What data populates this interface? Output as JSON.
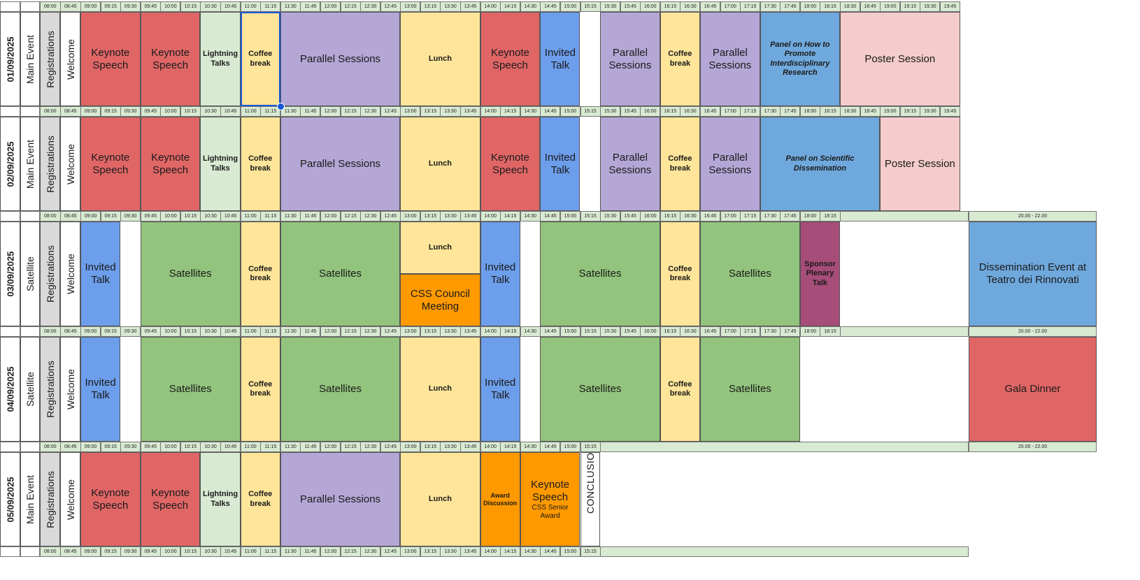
{
  "colors": {
    "keynote": "#e06666",
    "lightning": "#d9ead3",
    "coffee": "#ffe599",
    "parallel": "#b4a7d6",
    "lunch": "#ffe599",
    "invited": "#6d9eeb",
    "panel": "#6fa8dc",
    "poster": "#f4cccc",
    "satellites": "#93c47d",
    "orange": "#ff9900",
    "sponsor": "#a64d79",
    "dissemination": "#6fa8dc",
    "gala": "#e06666",
    "timeline": "#d9ead3",
    "registrations": "#d9d9d9",
    "selection": "#1a56d6"
  },
  "time_slots": [
    "08:00",
    "08:45",
    "09:00",
    "09:15",
    "09:30",
    "09:45",
    "10:00",
    "10:15",
    "10:30",
    "10:45",
    "11:00",
    "11:15",
    "11:30",
    "11:45",
    "12:00",
    "12:15",
    "12:30",
    "12:45",
    "13:00",
    "13:15",
    "13:30",
    "13:45",
    "14:00",
    "14:15",
    "14:30",
    "14:45",
    "15:00",
    "15:15",
    "15:30",
    "15:45",
    "16:00",
    "16:15",
    "16:30",
    "16:45",
    "17:00",
    "17:15",
    "17:30",
    "17:45",
    "18:00",
    "18:15",
    "18:30",
    "18:45",
    "19:00",
    "19:15",
    "19:30",
    "19:45"
  ],
  "evening_label": "20.00 - 22.00",
  "days": [
    {
      "date": "01/09/2025",
      "track": "Main Event",
      "registrations": "Registrations",
      "welcome": "Welcome",
      "sessions": [
        {
          "label": "Keynote Speech",
          "color": "keynote",
          "start": 2,
          "span": 3,
          "style": "big"
        },
        {
          "label": "Keynote Speech",
          "color": "keynote",
          "start": 5,
          "span": 3,
          "style": "big"
        },
        {
          "label": "Lightning Talks",
          "color": "lightning",
          "start": 8,
          "span": 2,
          "style": "small"
        },
        {
          "label": "Coffee break",
          "color": "coffee",
          "start": 10,
          "span": 2,
          "style": "small"
        },
        {
          "label": "Parallel Sessions",
          "color": "parallel",
          "start": 12,
          "span": 6,
          "style": "big"
        },
        {
          "label": "Lunch",
          "color": "lunch",
          "start": 18,
          "span": 4,
          "style": "small"
        },
        {
          "label": "Keynote Speech",
          "color": "keynote",
          "start": 22,
          "span": 3,
          "style": "big"
        },
        {
          "label": "Invited Talk",
          "color": "invited",
          "start": 25,
          "span": 2,
          "style": "big"
        },
        {
          "label": "Parallel Sessions",
          "color": "parallel",
          "start": 28,
          "span": 3,
          "style": "big"
        },
        {
          "label": "Coffee break",
          "color": "coffee",
          "start": 31,
          "span": 2,
          "style": "small"
        },
        {
          "label": "Parallel Sessions",
          "color": "parallel",
          "start": 33,
          "span": 3,
          "style": "big"
        },
        {
          "label": "Panel on How to Promote Interdisciplinary Research",
          "color": "panel",
          "start": 36,
          "span": 4,
          "style": "panel"
        },
        {
          "label": "Poster Session",
          "color": "poster",
          "start": 40,
          "span": 6,
          "style": "big"
        }
      ]
    },
    {
      "date": "02/09/2025",
      "track": "Main Event",
      "registrations": "Registrations",
      "welcome": "Welcome",
      "sessions": [
        {
          "label": "Keynote Speech",
          "color": "keynote",
          "start": 2,
          "span": 3,
          "style": "big"
        },
        {
          "label": "Keynote Speech",
          "color": "keynote",
          "start": 5,
          "span": 3,
          "style": "big"
        },
        {
          "label": "Lightning Talks",
          "color": "lightning",
          "start": 8,
          "span": 2,
          "style": "small"
        },
        {
          "label": "Coffee break",
          "color": "coffee",
          "start": 10,
          "span": 2,
          "style": "small"
        },
        {
          "label": "Parallel Sessions",
          "color": "parallel",
          "start": 12,
          "span": 6,
          "style": "big"
        },
        {
          "label": "Lunch",
          "color": "lunch",
          "start": 18,
          "span": 4,
          "style": "small"
        },
        {
          "label": "Keynote Speech",
          "color": "keynote",
          "start": 22,
          "span": 3,
          "style": "big"
        },
        {
          "label": "Invited Talk",
          "color": "invited",
          "start": 25,
          "span": 2,
          "style": "big"
        },
        {
          "label": "Parallel Sessions",
          "color": "parallel",
          "start": 28,
          "span": 3,
          "style": "big"
        },
        {
          "label": "Coffee break",
          "color": "coffee",
          "start": 31,
          "span": 2,
          "style": "small"
        },
        {
          "label": "Parallel Sessions",
          "color": "parallel",
          "start": 33,
          "span": 3,
          "style": "big"
        },
        {
          "label": "Panel on Scientific Dissemination",
          "color": "panel",
          "start": 36,
          "span": 6,
          "style": "panel"
        },
        {
          "label": "Poster Session",
          "color": "poster",
          "start": 42,
          "span": 4,
          "style": "big"
        }
      ]
    },
    {
      "date": "03/09/2025",
      "track": "Satellite",
      "registrations": "Registrations",
      "welcome": "Welcome",
      "sessions": [
        {
          "label": "Invited Talk",
          "color": "invited",
          "start": 2,
          "span": 2,
          "style": "big"
        },
        {
          "label": "Satellites",
          "color": "satellites",
          "start": 5,
          "span": 5,
          "style": "big"
        },
        {
          "label": "Coffee break",
          "color": "coffee",
          "start": 10,
          "span": 2,
          "style": "small"
        },
        {
          "label": "Satellites",
          "color": "satellites",
          "start": 12,
          "span": 6,
          "style": "big"
        },
        {
          "label": "Lunch",
          "color": "lunch",
          "start": 18,
          "span": 4,
          "style": "small",
          "half": "top"
        },
        {
          "label": "CSS Council Meeting",
          "color": "orange",
          "start": 18,
          "span": 4,
          "style": "big",
          "half": "bottom"
        },
        {
          "label": "Invited Talk",
          "color": "invited",
          "start": 22,
          "span": 2,
          "style": "big"
        },
        {
          "label": "Satellites",
          "color": "satellites",
          "start": 25,
          "span": 6,
          "style": "big"
        },
        {
          "label": "Coffee break",
          "color": "coffee",
          "start": 31,
          "span": 2,
          "style": "small"
        },
        {
          "label": "Satellites",
          "color": "satellites",
          "start": 33,
          "span": 5,
          "style": "big"
        },
        {
          "label": "Sponsor Plenary Talk",
          "color": "sponsor",
          "start": 38,
          "span": 2,
          "style": "small"
        },
        {
          "label": "Dissemination Event at Teatro dei Rinnovati",
          "color": "dissemination",
          "start": 46,
          "span": 6,
          "style": "big",
          "evening": true
        }
      ]
    },
    {
      "date": "04/09/2025",
      "track": "Satellite",
      "registrations": "Registrations",
      "welcome": "Welcome",
      "sessions": [
        {
          "label": "Invited Talk",
          "color": "invited",
          "start": 2,
          "span": 2,
          "style": "big"
        },
        {
          "label": "Satellites",
          "color": "satellites",
          "start": 5,
          "span": 5,
          "style": "big"
        },
        {
          "label": "Coffee break",
          "color": "coffee",
          "start": 10,
          "span": 2,
          "style": "small"
        },
        {
          "label": "Satellites",
          "color": "satellites",
          "start": 12,
          "span": 6,
          "style": "big"
        },
        {
          "label": "Lunch",
          "color": "lunch",
          "start": 18,
          "span": 4,
          "style": "small"
        },
        {
          "label": "Invited Talk",
          "color": "invited",
          "start": 22,
          "span": 2,
          "style": "big"
        },
        {
          "label": "Satellites",
          "color": "satellites",
          "start": 25,
          "span": 6,
          "style": "big"
        },
        {
          "label": "Coffee break",
          "color": "coffee",
          "start": 31,
          "span": 2,
          "style": "small"
        },
        {
          "label": "Satellites",
          "color": "satellites",
          "start": 33,
          "span": 5,
          "style": "big"
        },
        {
          "label": "Gala Dinner",
          "color": "gala",
          "start": 46,
          "span": 6,
          "style": "big",
          "evening": true
        }
      ]
    },
    {
      "date": "05/09/2025",
      "track": "Main Event",
      "registrations": "Registrations",
      "welcome": "Welcome",
      "sessions": [
        {
          "label": "Keynote Speech",
          "color": "keynote",
          "start": 2,
          "span": 3,
          "style": "big"
        },
        {
          "label": "Keynote Speech",
          "color": "keynote",
          "start": 5,
          "span": 3,
          "style": "big"
        },
        {
          "label": "Lightning Talks",
          "color": "lightning",
          "start": 8,
          "span": 2,
          "style": "small"
        },
        {
          "label": "Coffee break",
          "color": "coffee",
          "start": 10,
          "span": 2,
          "style": "small"
        },
        {
          "label": "Parallel Sessions",
          "color": "parallel",
          "start": 12,
          "span": 6,
          "style": "big"
        },
        {
          "label": "Lunch",
          "color": "lunch",
          "start": 18,
          "span": 4,
          "style": "small"
        },
        {
          "label": "Award Discussion",
          "color": "orange",
          "start": 22,
          "span": 2,
          "style": "tiny"
        },
        {
          "label": "Keynote Speech",
          "sublabel": "CSS Senior Award",
          "color": "orange",
          "start": 24,
          "span": 3,
          "style": "big"
        },
        {
          "label": "CONCLUSIONS",
          "color": "white",
          "start": 27,
          "span": 1,
          "style": "vertical"
        }
      ]
    }
  ]
}
